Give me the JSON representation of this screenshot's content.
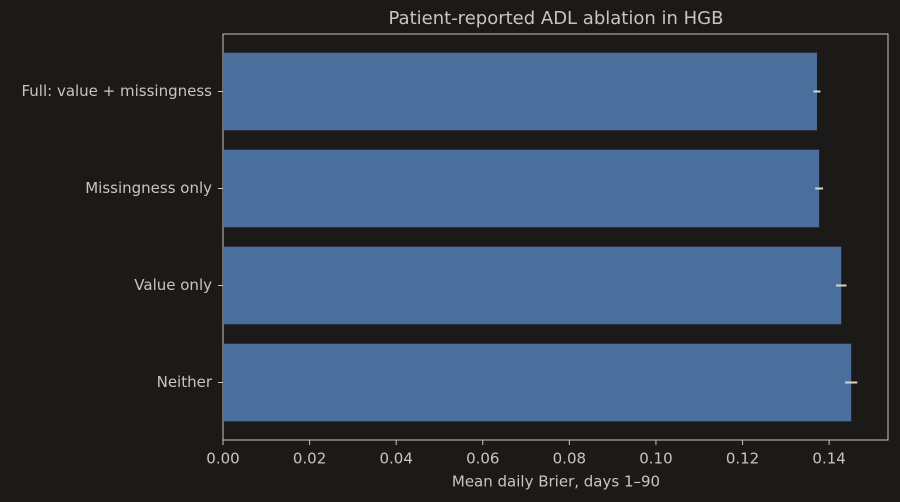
{
  "chart_data": {
    "type": "barh",
    "title": "Patient-reported ADL ablation in HGB",
    "xlabel": "Mean daily Brier, days 1–90",
    "categories": [
      "Full: value + missingness",
      "Missingness only",
      "Value only",
      "Neither"
    ],
    "values": [
      0.1372,
      0.1377,
      0.1428,
      0.1451
    ],
    "errors": [
      0.0008,
      0.0009,
      0.0012,
      0.0014
    ],
    "color": "#4a6f9c",
    "error_color": "#d8d4cc",
    "xlim": [
      0,
      0.1536
    ],
    "xticks": [
      {
        "value": 0,
        "label": "0.00"
      },
      {
        "value": 0.02,
        "label": "0.02"
      },
      {
        "value": 0.04,
        "label": "0.04"
      },
      {
        "value": 0.06,
        "label": "0.06"
      },
      {
        "value": 0.08,
        "label": "0.08"
      },
      {
        "value": 0.1,
        "label": "0.10"
      },
      {
        "value": 0.12,
        "label": "0.12"
      },
      {
        "value": 0.14,
        "label": "0.14"
      }
    ],
    "grid": false
  }
}
